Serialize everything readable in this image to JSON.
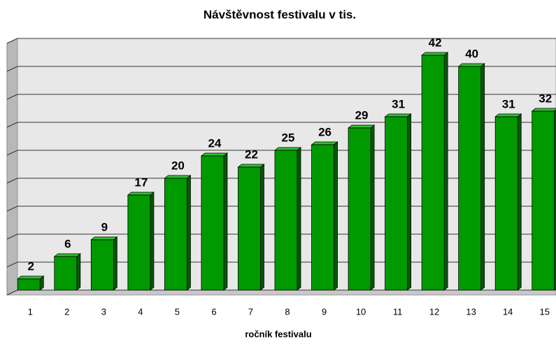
{
  "chart_data": {
    "type": "bar",
    "title": "Návštěvnost festivalu v tis.",
    "x_label": "ročník festivalu",
    "categories": [
      "1",
      "2",
      "3",
      "4",
      "5",
      "6",
      "7",
      "8",
      "9",
      "10",
      "11",
      "12",
      "13",
      "14",
      "15"
    ],
    "values": [
      2,
      6,
      9,
      17,
      20,
      24,
      22,
      25,
      26,
      29,
      31,
      42,
      40,
      31,
      32
    ],
    "color": "#009a00",
    "ylim": [
      0,
      45
    ],
    "yticks": [
      0,
      5,
      10,
      15,
      20,
      25,
      30,
      35,
      40,
      45
    ],
    "grid": true
  }
}
